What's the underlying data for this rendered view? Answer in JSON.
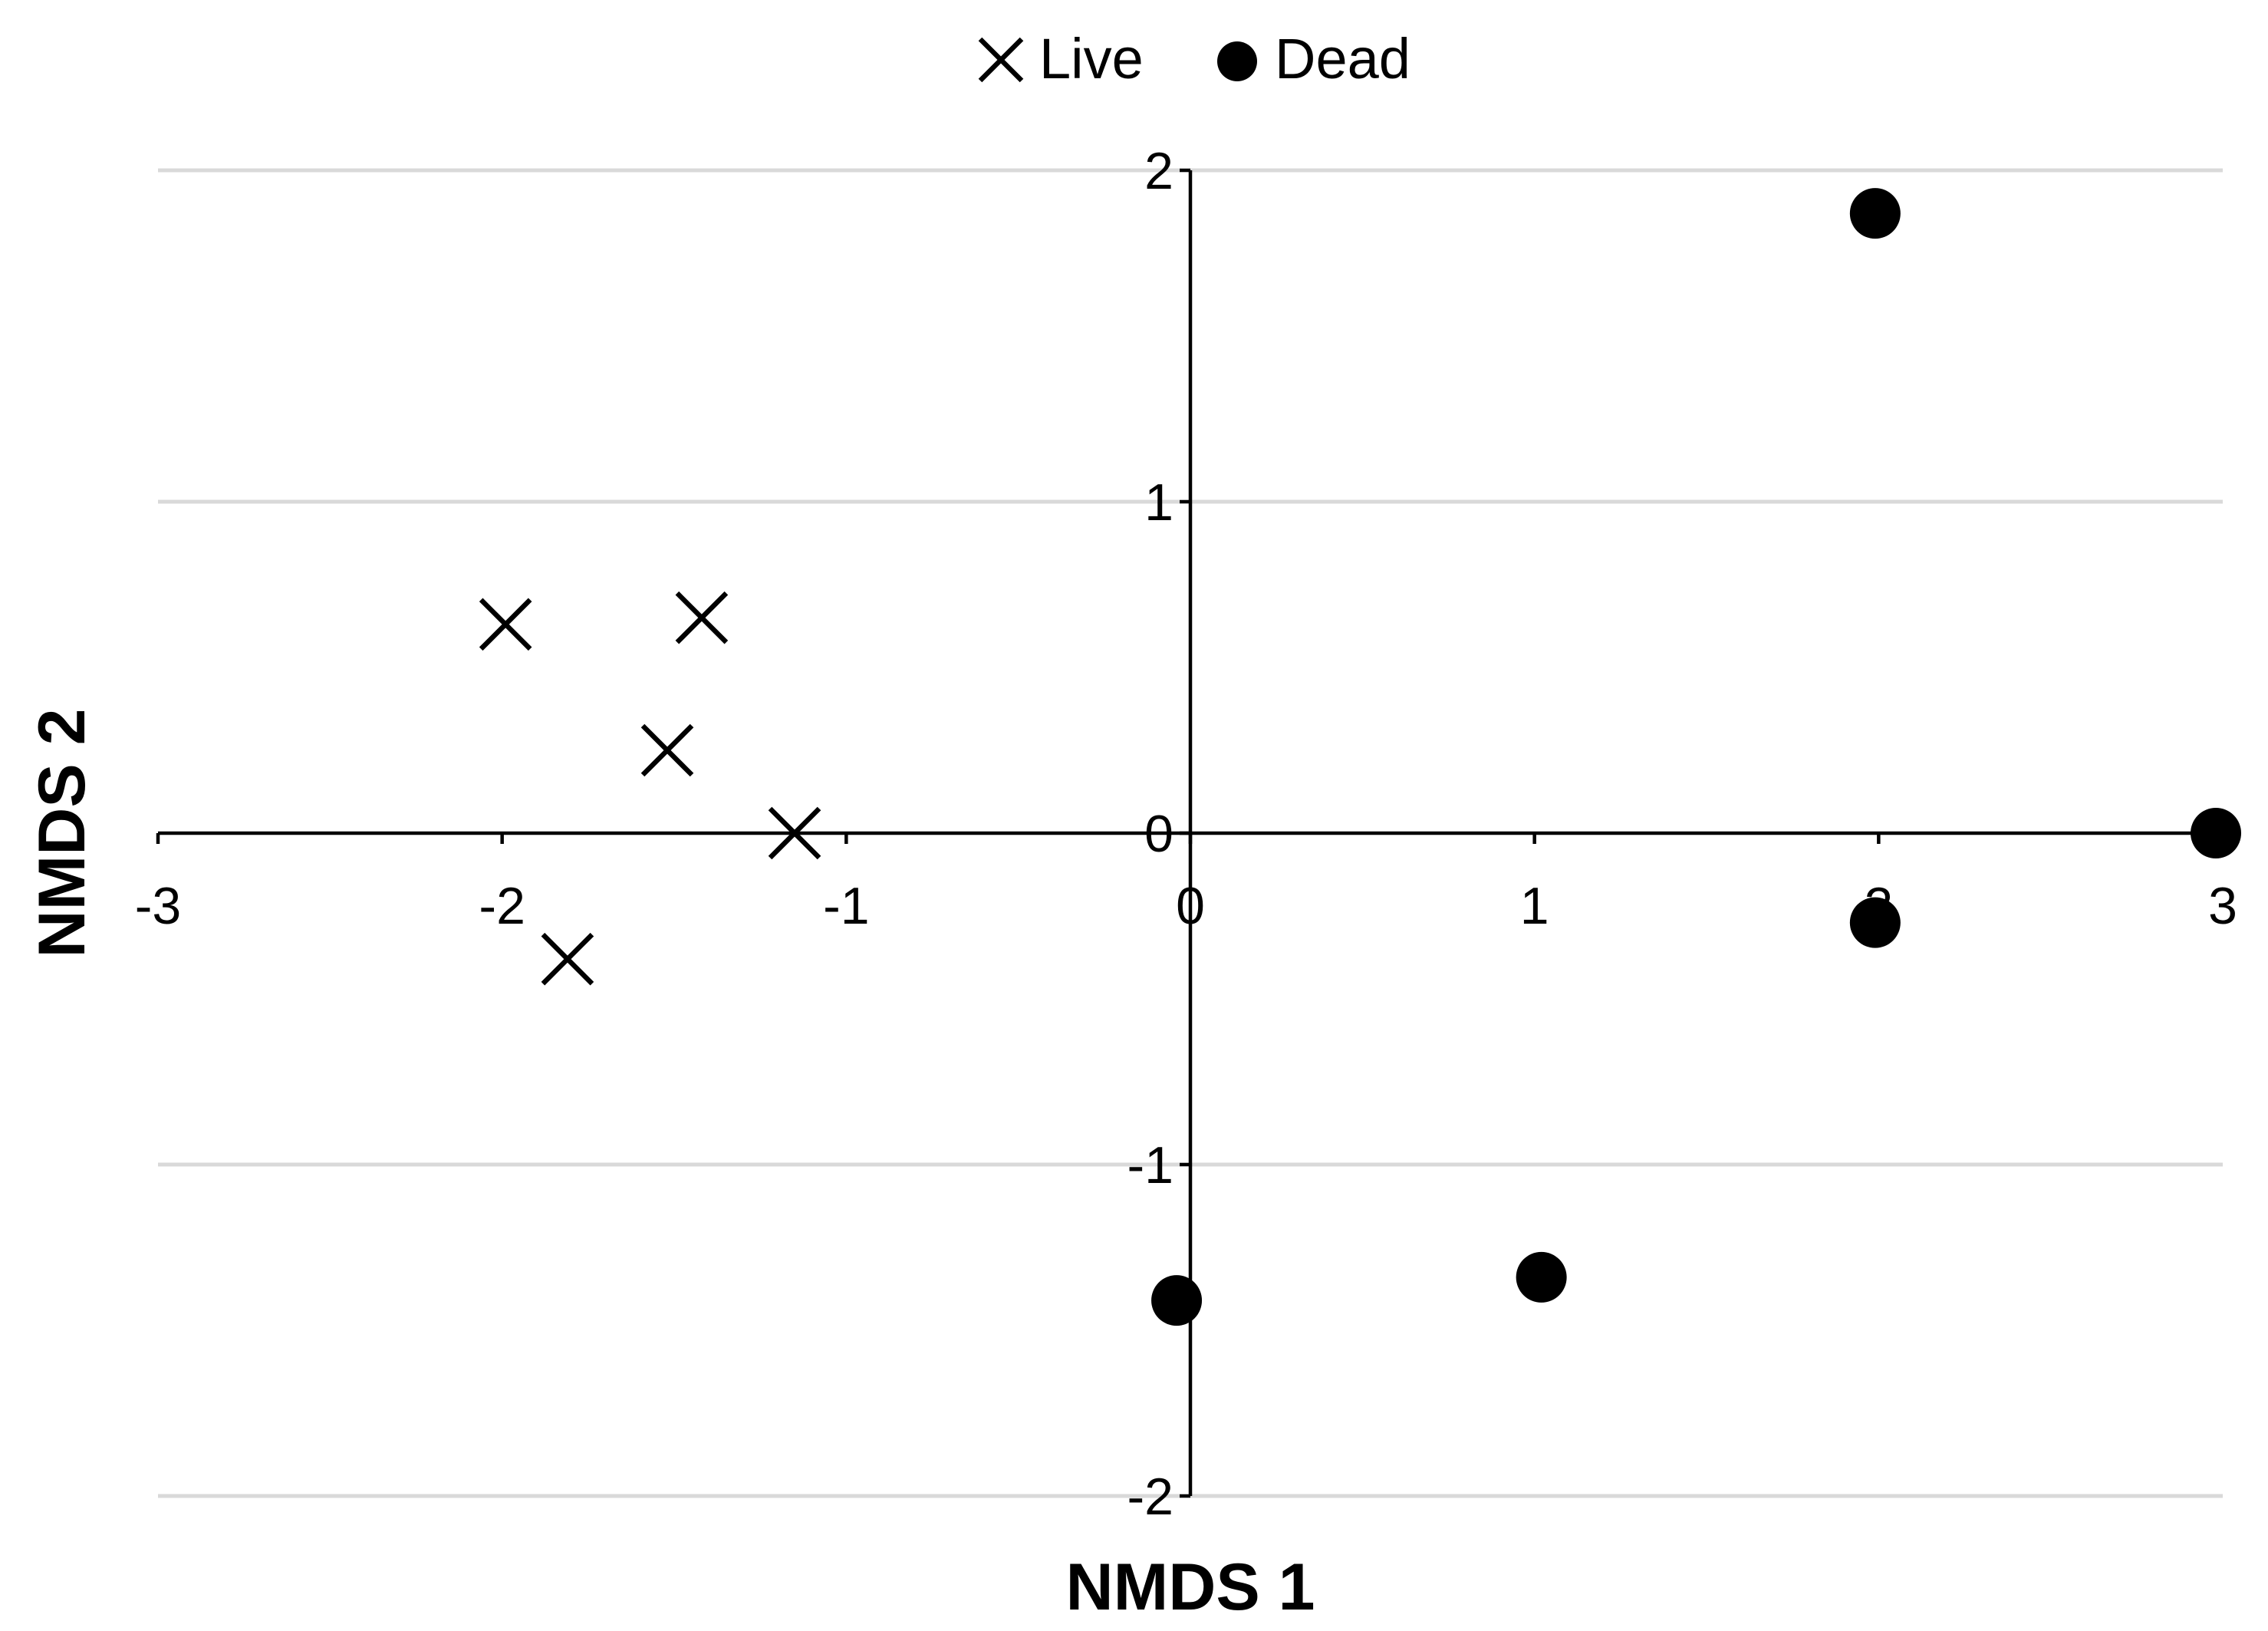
{
  "chart_data": {
    "type": "scatter",
    "title": "",
    "xlabel": "NMDS 1",
    "ylabel": "NMDS 2",
    "xlim": [
      -3,
      3
    ],
    "ylim": [
      -2,
      2
    ],
    "x_ticks": [
      -3,
      -2,
      -1,
      0,
      1,
      2,
      3
    ],
    "y_ticks": [
      -2,
      -1,
      0,
      1,
      2
    ],
    "x_tick_labels": [
      "-3",
      "-2",
      "-1",
      "0",
      "1",
      "2",
      "3"
    ],
    "y_tick_labels": [
      "-2",
      "-1",
      "0",
      "1",
      "2"
    ],
    "grid": "horizontal",
    "legend_position": "top-center",
    "series": [
      {
        "name": "Live",
        "marker": "x",
        "color": "#000000",
        "points": [
          {
            "x": -1.99,
            "y": 0.63
          },
          {
            "x": -1.42,
            "y": 0.65
          },
          {
            "x": -1.52,
            "y": 0.25
          },
          {
            "x": -1.15,
            "y": 0.0
          },
          {
            "x": -1.81,
            "y": -0.38
          }
        ]
      },
      {
        "name": "Dead",
        "marker": "circle",
        "color": "#000000",
        "points": [
          {
            "x": 1.99,
            "y": 1.87
          },
          {
            "x": 2.98,
            "y": 0.0
          },
          {
            "x": 1.99,
            "y": -0.27
          },
          {
            "x": -0.04,
            "y": -1.41
          },
          {
            "x": 1.02,
            "y": -1.34
          }
        ]
      }
    ]
  }
}
